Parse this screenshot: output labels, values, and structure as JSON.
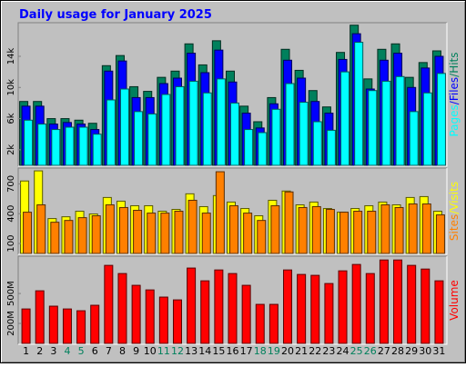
{
  "chart_data": [
    {
      "type": "bar",
      "title": "Daily usage for January 2025",
      "ylim": [
        0,
        18200
      ],
      "yticks": [
        {
          "value": 2000,
          "label": "2k"
        },
        {
          "value": 6000,
          "label": "6k"
        },
        {
          "value": 10000,
          "label": "10k"
        },
        {
          "value": 14000,
          "label": "14k"
        }
      ],
      "legend_separator": "/",
      "series": [
        {
          "name": "Hits",
          "color": "#00805c",
          "values": [
            8200,
            8200,
            6000,
            6000,
            5800,
            5400,
            12800,
            14100,
            10100,
            9500,
            11300,
            12100,
            15600,
            12900,
            16000,
            12100,
            7600,
            5600,
            8700,
            14900,
            12200,
            9600,
            7500,
            14500,
            18000,
            11100,
            14900,
            15600,
            11300,
            13200,
            14700
          ]
        },
        {
          "name": "Files",
          "color": "#0000ff",
          "values": [
            7600,
            7600,
            5300,
            5500,
            5300,
            4600,
            12100,
            13400,
            8700,
            8700,
            10500,
            11200,
            14400,
            11900,
            14800,
            10700,
            6700,
            4800,
            7900,
            13500,
            11200,
            8200,
            6700,
            13600,
            16900,
            9800,
            13500,
            14400,
            10000,
            12500,
            14000
          ]
        },
        {
          "name": "Pages",
          "color": "#00ffff",
          "values": [
            5800,
            5300,
            4600,
            4900,
            4900,
            4000,
            8400,
            9800,
            6900,
            6600,
            9100,
            10100,
            10800,
            9300,
            11100,
            8000,
            4600,
            4200,
            7200,
            10500,
            8100,
            5600,
            4500,
            12000,
            15800,
            9600,
            10800,
            11400,
            6900,
            9300,
            11800
          ]
        }
      ]
    },
    {
      "type": "bar",
      "ylim": [
        0,
        850
      ],
      "yticks": [
        100,
        400,
        700
      ],
      "legend_separator": "/",
      "series": [
        {
          "name": "Visits",
          "color": "#ffff00",
          "values": [
            729,
            831,
            351,
            369,
            425,
            397,
            563,
            526,
            480,
            480,
            425,
            443,
            600,
            471,
            582,
            517,
            452,
            379,
            535,
            628,
            489,
            517,
            452,
            415,
            452,
            480,
            517,
            489,
            563,
            572,
            425
          ]
        },
        {
          "name": "Sites",
          "color": "#ff8000",
          "values": [
            415,
            489,
            314,
            332,
            360,
            379,
            489,
            462,
            434,
            406,
            406,
            425,
            535,
            406,
            822,
            480,
            406,
            332,
            480,
            619,
            462,
            471,
            443,
            415,
            425,
            425,
            489,
            462,
            498,
            498,
            388
          ]
        }
      ]
    },
    {
      "type": "bar",
      "ylim": [
        0,
        865
      ],
      "yticks": [
        {
          "value": 200,
          "label": "200M"
        },
        {
          "value": 500,
          "label": "500M"
        }
      ],
      "categories": [
        "1",
        "2",
        "3",
        "4",
        "5",
        "6",
        "7",
        "8",
        "9",
        "10",
        "11",
        "12",
        "13",
        "14",
        "15",
        "16",
        "17",
        "18",
        "19",
        "20",
        "21",
        "22",
        "23",
        "24",
        "25",
        "26",
        "27",
        "28",
        "29",
        "30",
        "31"
      ],
      "weekend_indices": [
        3,
        4,
        10,
        11,
        17,
        18,
        24,
        25
      ],
      "weekend_color": "#00805c",
      "series": [
        {
          "name": "Volume",
          "color": "#ff0000",
          "values": [
            345,
            527,
            373,
            345,
            327,
            382,
            782,
            700,
            582,
            536,
            464,
            436,
            755,
            627,
            736,
            700,
            582,
            391,
            391,
            736,
            691,
            682,
            600,
            727,
            791,
            700,
            836,
            836,
            782,
            745,
            627
          ]
        }
      ]
    }
  ]
}
